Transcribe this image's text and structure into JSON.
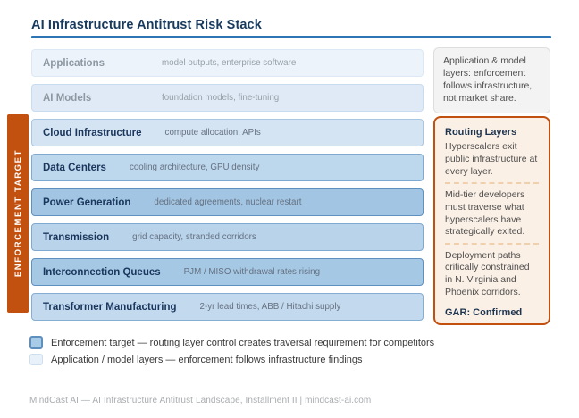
{
  "title": "AI Infrastructure Antitrust Risk Stack",
  "enforcement_label": "ENFORCEMENT TARGET",
  "colors": {
    "accent_blue": "#2E75B6",
    "enforcement_orange": "#C2500F",
    "navy_text": "#1A365C",
    "target_fill": "#A8CBE8",
    "app_layer_fill": "#E8F1FA"
  },
  "stack": {
    "layers": [
      {
        "name": "Applications",
        "sub": "model outputs, enterprise software",
        "fill": "#ECF3FB",
        "border": "#DCE8F4"
      },
      {
        "name": "AI Models",
        "sub": "foundation models, fine-tuning",
        "fill": "#DFEAF6",
        "border": "#C8DCEF"
      },
      {
        "name": "Cloud Infrastructure",
        "sub": "compute allocation, APIs",
        "fill": "#D4E4F3",
        "border": "#A9C7E3"
      },
      {
        "name": "Data Centers",
        "sub": "cooling architecture, GPU density",
        "fill": "#BDD7ED",
        "border": "#7FA9D0"
      },
      {
        "name": "Power Generation",
        "sub": "dedicated agreements, nuclear restart",
        "fill": "#A2C5E3",
        "border": "#5E90C0"
      },
      {
        "name": "Transmission",
        "sub": "grid capacity, stranded corridors",
        "fill": "#B9D3EB",
        "border": "#7FA9D0"
      },
      {
        "name": "Interconnection Queues",
        "sub": "PJM / MISO withdrawal rates rising",
        "fill": "#A5C8E5",
        "border": "#5E90C0"
      },
      {
        "name": "Transformer Manufacturing",
        "sub": "2-yr lead times, ABB / Hitachi supply",
        "fill": "#C2D9EE",
        "border": "#86AED2"
      }
    ]
  },
  "side": {
    "note": "Application & model layers: enforcement follows infrastructure, not market share.",
    "routing": {
      "heading": "Routing Layers",
      "paras": [
        "Hyperscalers exit public infrastructure at every layer.",
        "Mid-tier developers must traverse what hyperscalers have strategically exited.",
        "Deployment paths critically constrained in N. Virginia and Phoenix corridors."
      ],
      "status": "GAR: Confirmed"
    }
  },
  "legend": [
    {
      "label": "Enforcement target — routing layer control creates traversal requirement for competitors"
    },
    {
      "label": "Application / model layers — enforcement follows infrastructure findings"
    }
  ],
  "footer": "MindCast AI — AI Infrastructure Antitrust Landscape, Installment II | mindcast-ai.com"
}
